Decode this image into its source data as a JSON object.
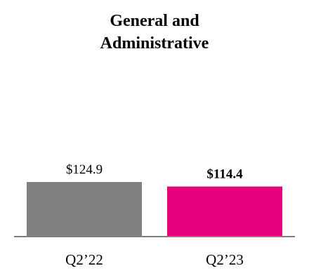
{
  "chart_data": {
    "type": "bar",
    "title_lines": [
      "General and",
      "Administrative"
    ],
    "categories": [
      "Q2’22",
      "Q2’23"
    ],
    "values": [
      124.9,
      114.4
    ],
    "value_labels": [
      "$124.9",
      "$114.4"
    ],
    "value_label_bold": [
      false,
      true
    ],
    "colors": [
      "#808080",
      "#E6007E"
    ],
    "axis_color": "#7f7f7f",
    "xlabel": "",
    "ylabel": "",
    "grid": false,
    "legend": "none"
  }
}
